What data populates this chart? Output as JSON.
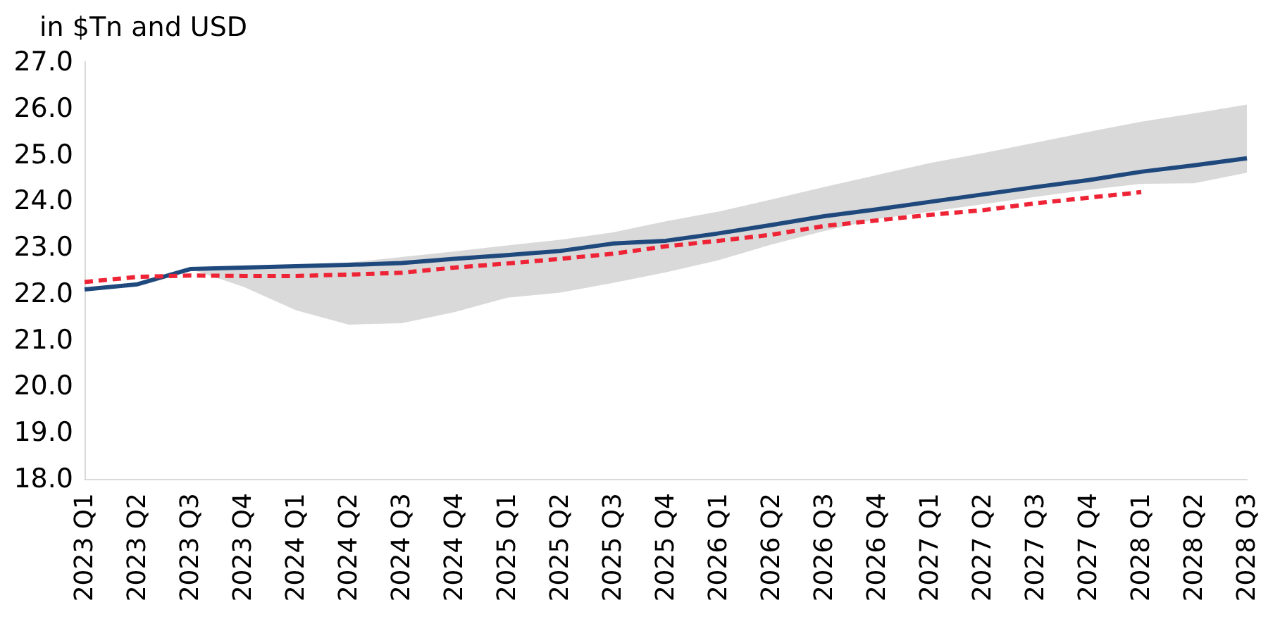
{
  "chart_data": {
    "type": "line",
    "ylabel": "in $Tn and USD",
    "categories": [
      "2023 Q1",
      "2023 Q2",
      "2023 Q3",
      "2023 Q4",
      "2024 Q1",
      "2024 Q2",
      "2024 Q3",
      "2024 Q4",
      "2025 Q1",
      "2025 Q2",
      "2025 Q3",
      "2025 Q4",
      "2026 Q1",
      "2026 Q2",
      "2026 Q3",
      "2026 Q4",
      "2027 Q1",
      "2027 Q2",
      "2027 Q3",
      "2027 Q4",
      "2028 Q1",
      "2028 Q2",
      "2028 Q3"
    ],
    "series": [
      {
        "color": "#1f497d",
        "line_style": "solid",
        "values": [
          22.09,
          22.2,
          22.53,
          22.56,
          22.59,
          22.62,
          22.66,
          22.75,
          22.83,
          22.92,
          23.08,
          23.14,
          23.3,
          23.48,
          23.67,
          23.82,
          23.98,
          24.14,
          24.3,
          24.45,
          24.63,
          24.77,
          24.92
        ],
        "lower": [
          null,
          null,
          22.53,
          22.15,
          21.64,
          21.33,
          21.36,
          21.6,
          21.91,
          22.02,
          22.23,
          22.46,
          22.72,
          23.06,
          23.35,
          23.61,
          23.77,
          23.93,
          24.09,
          24.24,
          24.37,
          24.38,
          24.61
        ],
        "upper": [
          null,
          null,
          22.53,
          22.58,
          22.62,
          22.67,
          22.79,
          22.91,
          23.04,
          23.16,
          23.32,
          23.56,
          23.77,
          24.03,
          24.3,
          24.56,
          24.82,
          25.03,
          25.26,
          25.49,
          25.71,
          25.89,
          26.08
        ]
      },
      {
        "color": "#ee2436",
        "line_style": "dashed",
        "values": [
          22.25,
          22.36,
          22.39,
          22.38,
          22.38,
          22.41,
          22.45,
          22.56,
          22.65,
          22.75,
          22.86,
          23.02,
          23.14,
          23.27,
          23.46,
          23.58,
          23.7,
          23.8,
          23.95,
          24.07,
          24.19,
          null,
          null
        ]
      }
    ],
    "ylim": [
      18,
      27
    ],
    "yticks": [
      {
        "value": 18,
        "label": "18.0"
      },
      {
        "value": 19,
        "label": "19.0"
      },
      {
        "value": 20,
        "label": "20.0"
      },
      {
        "value": 21,
        "label": "21.0"
      },
      {
        "value": 22,
        "label": "22.0"
      },
      {
        "value": 23,
        "label": "23.0"
      },
      {
        "value": 24,
        "label": "24.0"
      },
      {
        "value": 25,
        "label": "25.0"
      },
      {
        "value": 26,
        "label": "26.0"
      },
      {
        "value": 27,
        "label": "27.0"
      }
    ],
    "grid": false,
    "legend": false,
    "marker": "none"
  }
}
